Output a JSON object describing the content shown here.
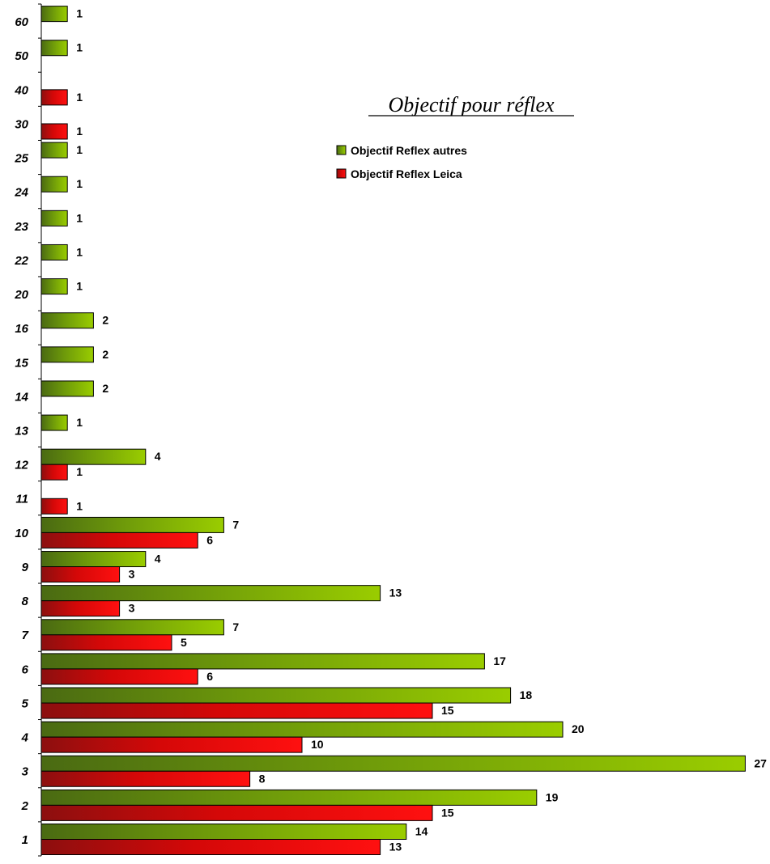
{
  "chart_data": {
    "type": "bar",
    "orientation": "horizontal",
    "title": "Objectif pour réflex",
    "xlabel": "",
    "ylabel": "",
    "xlim": [
      0,
      27
    ],
    "grid": false,
    "legend_position": "top-right",
    "categories": [
      "1",
      "2",
      "3",
      "4",
      "5",
      "6",
      "7",
      "8",
      "9",
      "10",
      "11",
      "12",
      "13",
      "14",
      "15",
      "16",
      "20",
      "22",
      "23",
      "24",
      "25",
      "30",
      "40",
      "50",
      "60"
    ],
    "series": [
      {
        "name": "Objectif Reflex autres",
        "color": "#8cbf00",
        "values": [
          14,
          19,
          27,
          20,
          18,
          17,
          7,
          13,
          4,
          7,
          null,
          4,
          1,
          2,
          2,
          2,
          1,
          1,
          1,
          1,
          1,
          null,
          null,
          1,
          1
        ]
      },
      {
        "name": "Objectif Reflex Leica",
        "color": "#ff0000",
        "values": [
          13,
          15,
          8,
          10,
          15,
          6,
          5,
          3,
          3,
          6,
          1,
          1,
          null,
          null,
          null,
          null,
          null,
          null,
          null,
          null,
          null,
          1,
          1,
          null,
          null
        ]
      }
    ]
  }
}
